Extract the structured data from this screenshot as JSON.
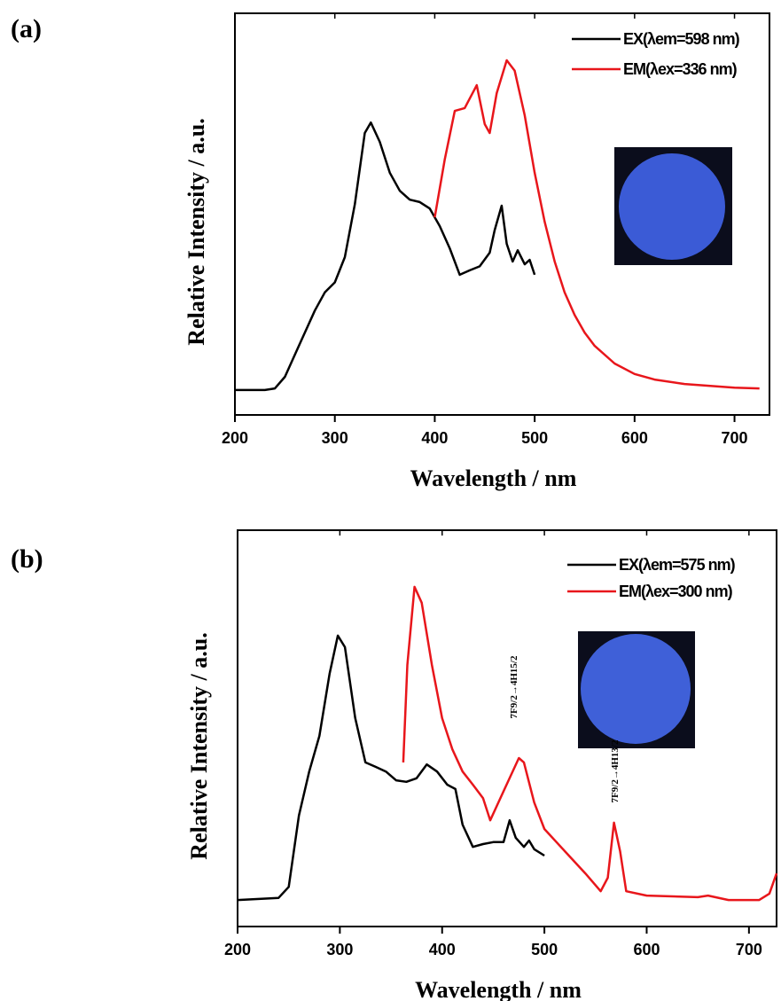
{
  "chart_data": [
    {
      "type": "line",
      "panel_label": "(a)",
      "x_label": "Wavelength / nm",
      "y_label": "Relative Intensity / a.u.",
      "xlim": [
        200,
        735
      ],
      "xticks": [
        200,
        300,
        400,
        500,
        600,
        700
      ],
      "ylim": [
        0,
        100
      ],
      "series": [
        {
          "name": "EX(λem=598 nm)",
          "color": "#000000",
          "x": [
            200,
            230,
            240,
            250,
            260,
            270,
            280,
            290,
            300,
            310,
            320,
            330,
            336,
            345,
            355,
            365,
            375,
            385,
            395,
            405,
            415,
            425,
            435,
            445,
            455,
            460,
            467,
            472,
            478,
            483,
            490,
            495,
            500
          ],
          "values": [
            6.2,
            6.2,
            6.6,
            9.5,
            15,
            20.5,
            26,
            30.5,
            33,
            39.3,
            52.5,
            70.2,
            72.8,
            68,
            60.3,
            55.8,
            53.6,
            53,
            51.4,
            47,
            41.5,
            34.9,
            36,
            37,
            40.4,
            46,
            52.1,
            42.6,
            38.2,
            41,
            37.5,
            38.6,
            34.9
          ]
        },
        {
          "name": "EM(λex=336 nm)",
          "color": "#e8161b",
          "x": [
            400,
            410,
            420,
            430,
            442,
            450,
            455,
            462,
            472,
            480,
            490,
            500,
            510,
            520,
            530,
            540,
            550,
            560,
            580,
            600,
            620,
            650,
            700,
            725
          ],
          "values": [
            49.2,
            63.6,
            75.7,
            76.4,
            82.1,
            72.4,
            70.2,
            80.1,
            88.3,
            85.7,
            74.6,
            60.3,
            48.1,
            38.2,
            30.5,
            24.9,
            20.5,
            17.2,
            12.8,
            10.2,
            8.8,
            7.7,
            6.8,
            6.6
          ]
        }
      ]
    },
    {
      "type": "line",
      "panel_label": "(b)",
      "x_label": "Wavelength / nm",
      "y_label": "Relative Intensity / a.u.",
      "xlim": [
        200,
        727
      ],
      "xticks": [
        200,
        300,
        400,
        500,
        600,
        700
      ],
      "ylim": [
        0,
        100
      ],
      "annotations": [
        "7F9/2→4H15/2",
        "7F9/2→4H13/2"
      ],
      "series": [
        {
          "name": "EX(λem=575 nm)",
          "color": "#000000",
          "x": [
            200,
            240,
            250,
            260,
            270,
            280,
            290,
            298,
            305,
            315,
            325,
            335,
            345,
            355,
            365,
            375,
            385,
            395,
            405,
            413,
            420,
            430,
            440,
            450,
            460,
            466,
            472,
            480,
            485,
            490,
            500
          ],
          "values": [
            6.7,
            7.2,
            10,
            28,
            39.1,
            48.1,
            63.8,
            73.4,
            70.5,
            52.6,
            41.4,
            40.3,
            39.1,
            36.9,
            36.5,
            37.4,
            40.9,
            39.1,
            35.8,
            34.7,
            25.7,
            20.1,
            20.8,
            21.3,
            21.3,
            26.8,
            22.4,
            20.1,
            21.7,
            19.5,
            17.9
          ]
        },
        {
          "name": "EM(λex=300 nm)",
          "color": "#e8161b",
          "x": [
            362,
            366,
            373,
            380,
            390,
            400,
            410,
            420,
            430,
            440,
            447,
            455,
            465,
            475,
            480,
            490,
            500,
            520,
            540,
            555,
            562,
            568,
            574,
            580,
            600,
            650,
            660,
            680,
            710,
            720,
            727
          ],
          "values": [
            41.4,
            66,
            85.7,
            81.7,
            66,
            52.6,
            44.7,
            39.1,
            35.8,
            32.4,
            26.8,
            31.3,
            36.9,
            42.5,
            41.4,
            31.3,
            24.6,
            19,
            13.4,
            8.9,
            12.3,
            26.2,
            19,
            8.9,
            7.8,
            7.4,
            7.8,
            6.7,
            6.7,
            8.3,
            13.4
          ]
        }
      ]
    }
  ]
}
